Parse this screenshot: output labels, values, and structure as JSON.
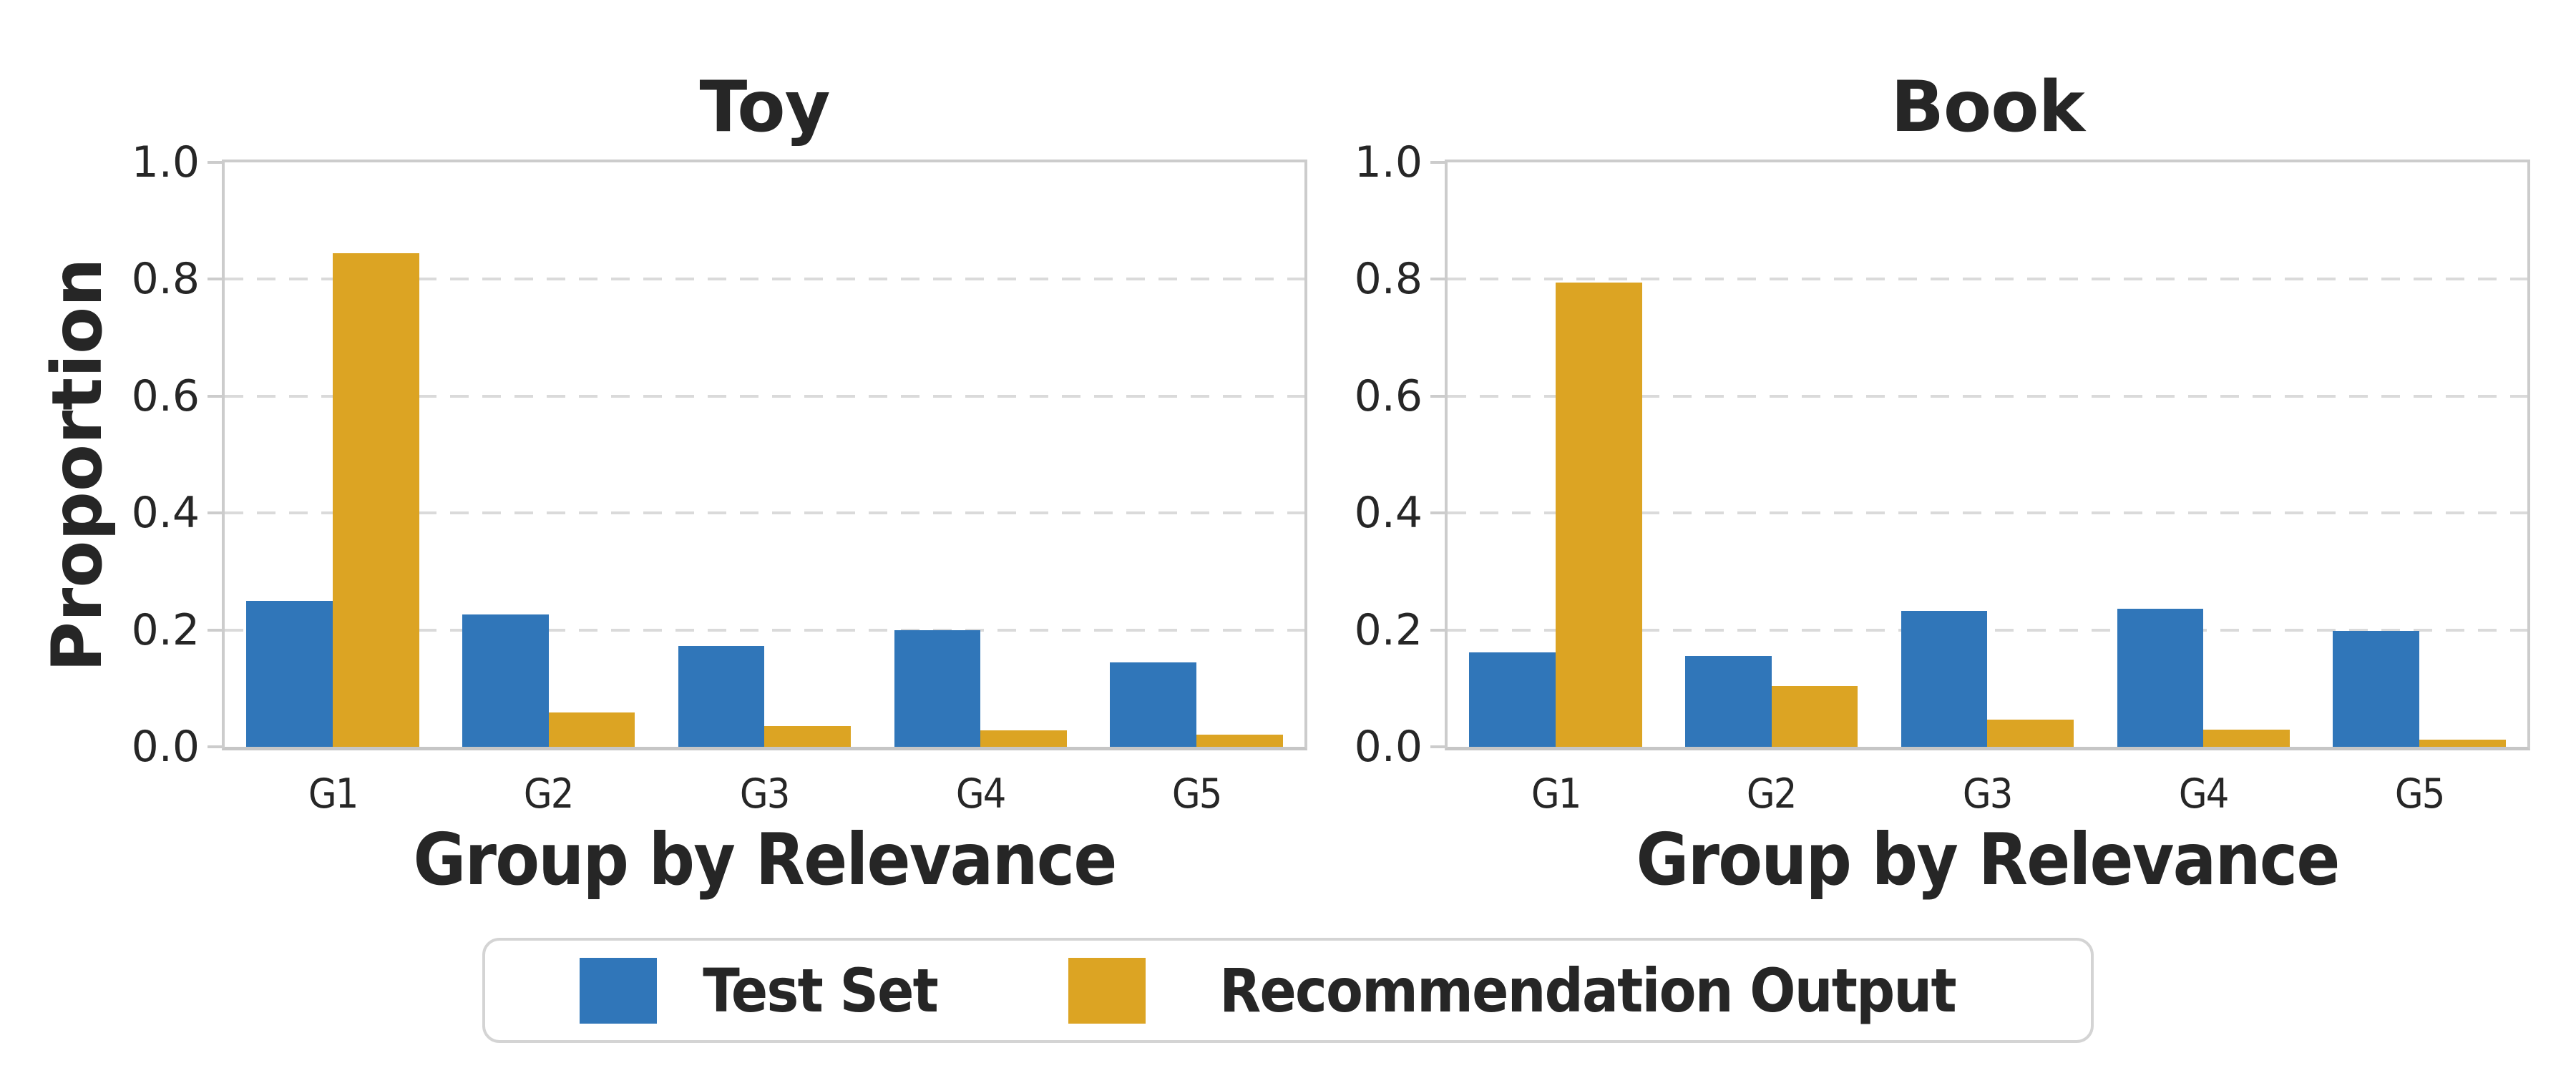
{
  "figure": {
    "ylabel": "Proportion",
    "xlabel": "Group by Relevance",
    "categories": [
      "G1",
      "G2",
      "G3",
      "G4",
      "G5"
    ],
    "ytick_labels": [
      "0.0",
      "0.2",
      "0.4",
      "0.6",
      "0.8",
      "1.0"
    ],
    "grid_values": [
      0.2,
      0.4,
      0.6,
      0.8
    ]
  },
  "colors": {
    "test_set": "#3076B9",
    "recommendation_output": "#DCA423",
    "grid": "#DADADA",
    "spine": "#CCCCCC",
    "text": "#262626"
  },
  "legend": {
    "items": [
      {
        "label": "Test Set",
        "color_key": "test_set"
      },
      {
        "label": "Recommendation Output",
        "color_key": "recommendation_output"
      }
    ]
  },
  "chart_data": [
    {
      "type": "bar",
      "title": "Toy",
      "xlabel": "Group by Relevance",
      "ylabel": "Proportion",
      "categories": [
        "G1",
        "G2",
        "G3",
        "G4",
        "G5"
      ],
      "series": [
        {
          "name": "Test Set",
          "color_key": "test_set",
          "values": [
            0.25,
            0.226,
            0.172,
            0.199,
            0.144
          ]
        },
        {
          "name": "Recommendation Output",
          "color_key": "recommendation_output",
          "values": [
            0.845,
            0.059,
            0.035,
            0.028,
            0.021
          ]
        }
      ],
      "ylim": [
        0,
        1.0
      ],
      "yticks": [
        0.0,
        0.2,
        0.4,
        0.6,
        0.8,
        1.0
      ],
      "grid": "horizontal-dashed",
      "legend_position": "below-figure-center"
    },
    {
      "type": "bar",
      "title": "Book",
      "xlabel": "Group by Relevance",
      "ylabel": "Proportion",
      "categories": [
        "G1",
        "G2",
        "G3",
        "G4",
        "G5"
      ],
      "series": [
        {
          "name": "Test Set",
          "color_key": "test_set",
          "values": [
            0.162,
            0.156,
            0.232,
            0.236,
            0.198
          ]
        },
        {
          "name": "Recommendation Output",
          "color_key": "recommendation_output",
          "values": [
            0.795,
            0.104,
            0.046,
            0.029,
            0.012
          ]
        }
      ],
      "ylim": [
        0,
        1.0
      ],
      "yticks": [
        0.0,
        0.2,
        0.4,
        0.6,
        0.8,
        1.0
      ],
      "grid": "horizontal-dashed",
      "legend_position": "below-figure-center"
    }
  ]
}
